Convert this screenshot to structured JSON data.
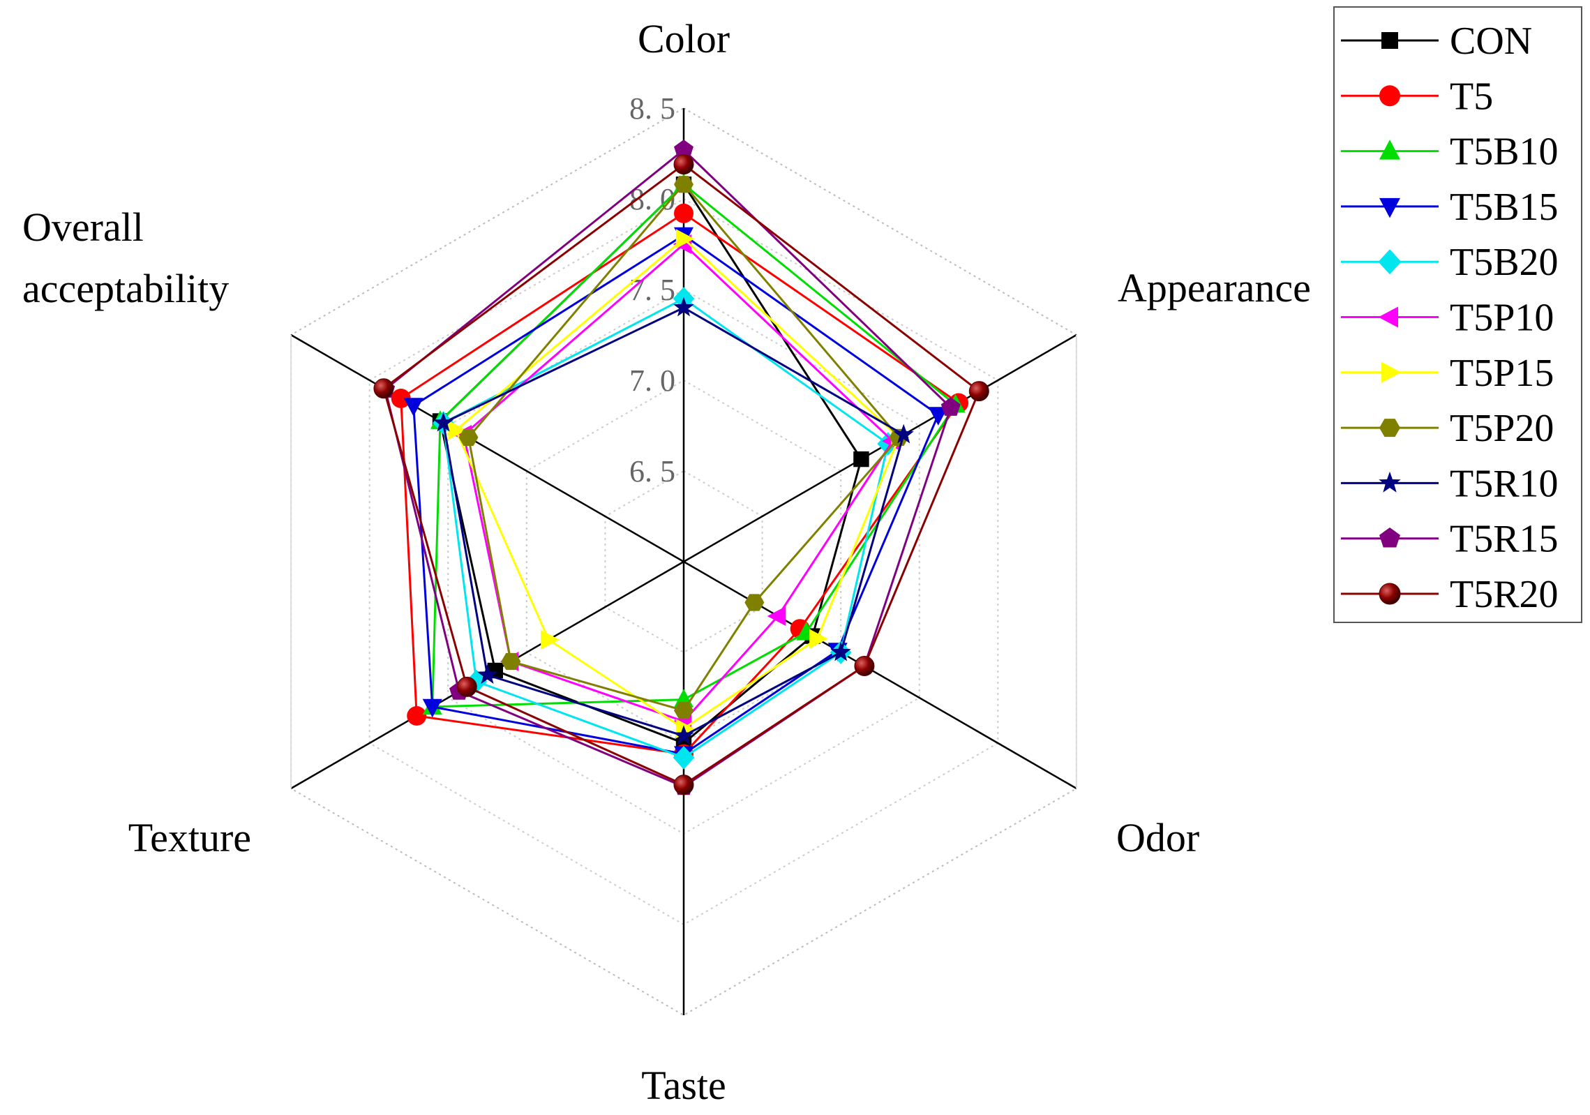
{
  "chart_data": {
    "type": "radar",
    "axes": [
      "Color",
      "Appearance",
      "Odor",
      "Taste",
      "Texture",
      "Overall acceptability"
    ],
    "axis_label_lines": [
      [
        "Color"
      ],
      [
        "Appearance"
      ],
      [
        "Odor"
      ],
      [
        "Taste"
      ],
      [
        "Texture"
      ],
      [
        "Overall",
        "acceptability"
      ]
    ],
    "rlim": [
      6.0,
      8.5
    ],
    "ticks": [
      6.5,
      7.0,
      7.5,
      8.0,
      8.5
    ],
    "tick_labels": [
      "6. 5",
      "7. 0",
      "7. 5",
      "8. 0",
      "8. 5"
    ],
    "grid": true,
    "legend": {
      "position": "top-right"
    },
    "series": [
      {
        "name": "CON",
        "color": "#000000",
        "marker": "square",
        "values": [
          8.08,
          7.13,
          6.82,
          7.0,
          7.2,
          7.55
        ]
      },
      {
        "name": "T5",
        "color": "#ff0000",
        "marker": "circle",
        "values": [
          7.92,
          7.75,
          6.74,
          7.06,
          7.7,
          7.8
        ]
      },
      {
        "name": "T5B10",
        "color": "#00dd00",
        "marker": "triangle-up",
        "values": [
          8.08,
          7.73,
          6.78,
          6.76,
          7.6,
          7.55
        ]
      },
      {
        "name": "T5B15",
        "color": "#0000dd",
        "marker": "triangle-down",
        "values": [
          7.8,
          7.62,
          6.98,
          7.06,
          7.6,
          7.72
        ]
      },
      {
        "name": "T5B20",
        "color": "#00e5ee",
        "marker": "diamond",
        "values": [
          7.45,
          7.3,
          7.0,
          7.08,
          7.32,
          7.53
        ]
      },
      {
        "name": "T5P10",
        "color": "#ff00ff",
        "marker": "triangle-left",
        "values": [
          7.75,
          7.33,
          6.6,
          6.88,
          7.1,
          7.4
        ]
      },
      {
        "name": "T5P15",
        "color": "#ffff00",
        "marker": "triangle-right",
        "values": [
          7.78,
          7.37,
          6.85,
          6.92,
          6.86,
          7.45
        ]
      },
      {
        "name": "T5P20",
        "color": "#808000",
        "marker": "hexagon",
        "values": [
          8.08,
          7.37,
          6.45,
          6.82,
          7.1,
          7.37
        ]
      },
      {
        "name": "T5R10",
        "color": "#000080",
        "marker": "star",
        "values": [
          7.4,
          7.4,
          7.0,
          6.96,
          7.25,
          7.53
        ]
      },
      {
        "name": "T5R15",
        "color": "#800080",
        "marker": "pentagon",
        "values": [
          8.27,
          7.7,
          7.15,
          7.24,
          7.43,
          7.9
        ]
      },
      {
        "name": "T5R20",
        "color": "#8b0000",
        "marker": "sphere",
        "values": [
          8.19,
          7.88,
          7.15,
          7.23,
          7.38,
          7.91
        ]
      }
    ]
  }
}
